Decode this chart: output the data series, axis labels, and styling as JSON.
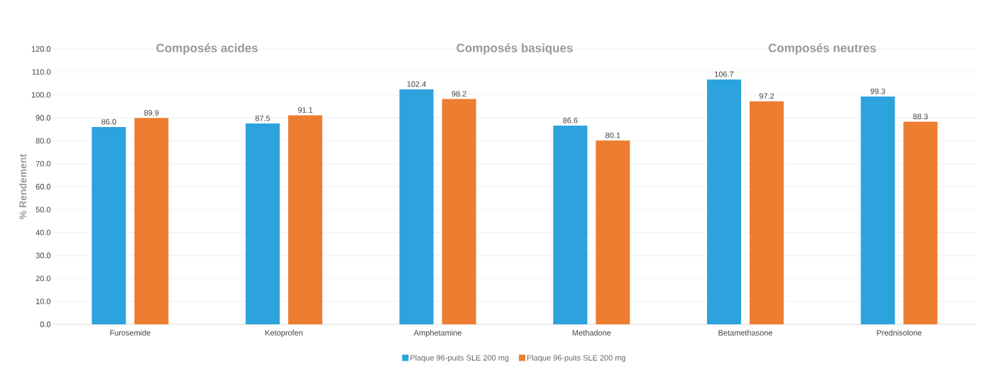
{
  "chart_data": {
    "type": "bar",
    "ylabel": "% Rendement",
    "categories": [
      "Furosemide",
      "Ketoprofen",
      "Amphetamine",
      "Methadone",
      "Betamethasone",
      "Prednisolone"
    ],
    "series": [
      {
        "name": "Plaque 96-puits SLE 200 mg",
        "color": "#2ca3dd",
        "values": [
          86.0,
          87.5,
          102.4,
          86.6,
          106.7,
          99.3
        ],
        "value_labels": [
          "86.0",
          "87.5",
          "102.4",
          "86.6",
          "106.7",
          "99.3"
        ]
      },
      {
        "name": "Plaque 96-puits SLE 200 mg",
        "color": "#ed7d31",
        "values": [
          89.9,
          91.1,
          98.2,
          80.1,
          97.2,
          88.3
        ],
        "value_labels": [
          "89.9",
          "91.1",
          "98.2",
          "80.1",
          "97.2",
          "88.3"
        ]
      }
    ],
    "annotations": [
      "Composés acides",
      "Composés basiques",
      "Composés neutres"
    ],
    "ylim": [
      0,
      120
    ],
    "yticks": [
      {
        "value": 0,
        "label": "0.0"
      },
      {
        "value": 10,
        "label": "10.0"
      },
      {
        "value": 20,
        "label": "20.0"
      },
      {
        "value": 30,
        "label": "30.0"
      },
      {
        "value": 40,
        "label": "40.0"
      },
      {
        "value": 50,
        "label": "50.0"
      },
      {
        "value": 60,
        "label": "60.0"
      },
      {
        "value": 70,
        "label": "70.0"
      },
      {
        "value": 80,
        "label": "80.0"
      },
      {
        "value": 90,
        "label": "90.0"
      },
      {
        "value": 100,
        "label": "100.0"
      },
      {
        "value": 110,
        "label": "110.0"
      },
      {
        "value": 120,
        "label": "120.0"
      }
    ],
    "grid": "y",
    "legend": "bottom"
  }
}
